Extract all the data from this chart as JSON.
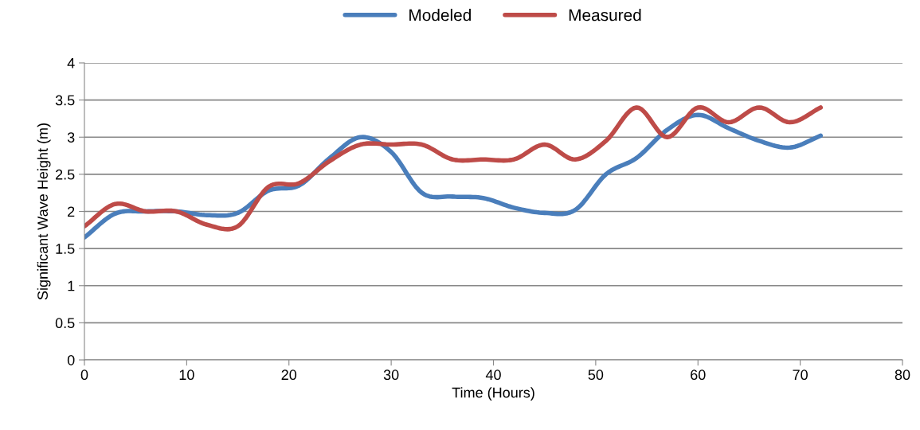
{
  "chart_data": {
    "type": "line",
    "xlabel": "Time (Hours)",
    "ylabel": "Significant Wave Height (m)",
    "x": [
      0,
      3,
      6,
      9,
      12,
      15,
      18,
      21,
      24,
      27,
      30,
      33,
      36,
      39,
      42,
      45,
      48,
      51,
      54,
      57,
      60,
      63,
      66,
      69,
      72
    ],
    "series": [
      {
        "name": "Modeled",
        "color": "#4a7ebb",
        "values": [
          1.65,
          1.97,
          2.0,
          2.0,
          1.95,
          1.98,
          2.28,
          2.35,
          2.72,
          3.0,
          2.8,
          2.25,
          2.2,
          2.18,
          2.05,
          1.98,
          2.02,
          2.5,
          2.72,
          3.1,
          3.3,
          3.12,
          2.95,
          2.86,
          3.02
        ]
      },
      {
        "name": "Measured",
        "color": "#be4b48",
        "values": [
          1.8,
          2.1,
          2.0,
          2.0,
          1.82,
          1.8,
          2.33,
          2.38,
          2.68,
          2.9,
          2.9,
          2.9,
          2.7,
          2.7,
          2.7,
          2.9,
          2.7,
          2.95,
          3.4,
          3.0,
          3.4,
          3.2,
          3.4,
          3.2,
          3.4
        ]
      }
    ],
    "xlim": [
      0,
      80
    ],
    "xticks": [
      0,
      10,
      20,
      30,
      40,
      50,
      60,
      70,
      80
    ],
    "ylim": [
      0,
      4
    ],
    "yticks": [
      0,
      0.5,
      1,
      1.5,
      2,
      2.5,
      3,
      3.5,
      4
    ],
    "grid": "y",
    "legend": "top",
    "marker": "none",
    "line_style": "solid"
  }
}
